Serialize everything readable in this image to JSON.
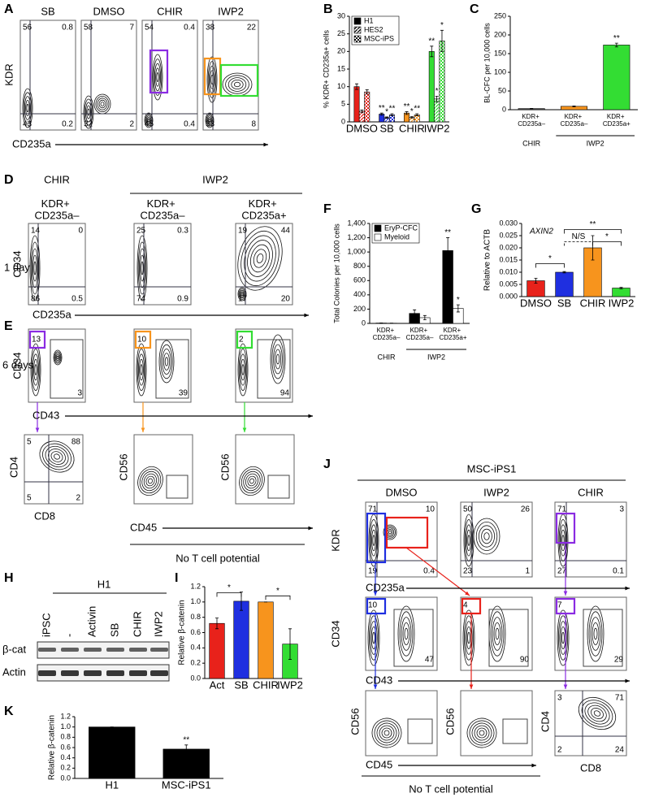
{
  "figure": {
    "panel_labels": [
      "A",
      "B",
      "C",
      "D",
      "E",
      "F",
      "G",
      "H",
      "I",
      "J",
      "K"
    ],
    "A": {
      "conditions": [
        "SB",
        "DMSO",
        "CHIR",
        "IWP2"
      ],
      "y_label": "KDR",
      "x_label": "CD235a",
      "quadrants": [
        [
          "56",
          "0.8",
          "43",
          "0.2"
        ],
        [
          "58",
          "7",
          "32",
          "2"
        ],
        [
          "54",
          "0.4",
          "45",
          "0.4"
        ],
        [
          "38",
          "22",
          "33",
          "8"
        ]
      ]
    },
    "D": {
      "groups": [
        "CHIR",
        "IWP2"
      ],
      "populations": [
        "KDR+ CD235a–",
        "KDR+ CD235a–",
        "KDR+ CD235a+"
      ],
      "time": "1 day",
      "y_label": "CD34",
      "x_label": "CD235a",
      "quadrants": [
        [
          "14",
          "0",
          "86",
          "0.5"
        ],
        [
          "25",
          "0.3",
          "74",
          "0.9"
        ],
        [
          "19",
          "44",
          "17",
          "20"
        ]
      ]
    },
    "E": {
      "time": "6 days",
      "y_label": "CD34",
      "x_label": "CD43",
      "gates": [
        [
          "13",
          "3"
        ],
        [
          "10",
          "39"
        ],
        [
          "2",
          "94"
        ]
      ],
      "t_cell": {
        "y_labels": [
          "CD4",
          "CD56",
          "CD56"
        ],
        "x_labels": [
          "CD8",
          "CD45"
        ],
        "quadrants": [
          "5",
          "88",
          "5",
          "2"
        ],
        "note": "No T cell potential"
      }
    },
    "H": {
      "group": "H1",
      "lanes": [
        "iPSC",
        "-",
        "Activin",
        "SB",
        "CHIR",
        "IWP2"
      ],
      "rows": [
        "β-cat",
        "Actin"
      ]
    },
    "J": {
      "title": "MSC-iPS1",
      "conditions": [
        "DMSO",
        "IWP2",
        "CHIR"
      ],
      "row1": {
        "y_label": "KDR",
        "x_label": "CD235a",
        "quadrants": [
          [
            "71",
            "10",
            "19",
            "0.4"
          ],
          [
            "50",
            "26",
            "23",
            "1"
          ],
          [
            "71",
            "3",
            "27",
            "0.1"
          ]
        ]
      },
      "row2": {
        "y_label": "CD34",
        "x_label": "CD43",
        "gates": [
          [
            "10",
            "47"
          ],
          [
            "4",
            "90"
          ],
          [
            "7",
            "29"
          ]
        ]
      },
      "row3": {
        "y_labels": [
          "CD56",
          "CD56",
          "CD4"
        ],
        "x_labels": [
          "CD45",
          "CD8"
        ],
        "quadrants": [
          "3",
          "71",
          "2",
          "24"
        ],
        "note": "No T cell potential"
      }
    }
  },
  "chart_data": [
    {
      "type": "bar",
      "y_label": "% KDR+ CD235a+ cells",
      "categories": [
        "DMSO",
        "SB",
        "CHIR",
        "IWP2"
      ],
      "category_colors": [
        "#e8221b",
        "#1f2fe0",
        "#f7941d",
        "#33dd33"
      ],
      "series": [
        {
          "name": "H1",
          "pattern": "solid",
          "color": "#000000",
          "values": [
            10,
            2.2,
            2.5,
            20
          ],
          "errors": [
            0.8,
            0.3,
            0.4,
            1.5
          ],
          "significance": [
            null,
            "**",
            "**",
            "**"
          ]
        },
        {
          "name": "HES2",
          "pattern": "hatch",
          "color": "#000000",
          "values": [
            3,
            1.2,
            1.3,
            6.5
          ],
          "errors": [
            0.4,
            0.2,
            0.2,
            0.8
          ],
          "significance": [
            null,
            "*",
            "*",
            "*"
          ]
        },
        {
          "name": "MSC-iPS",
          "pattern": "check",
          "color": "#000000",
          "values": [
            8.5,
            2,
            2,
            23
          ],
          "errors": [
            0.6,
            0.3,
            0.3,
            3
          ],
          "significance": [
            null,
            "**",
            "**",
            "*"
          ]
        }
      ],
      "ylim": [
        0,
        30
      ],
      "yticks": [
        0,
        5,
        10,
        15,
        20,
        25,
        30
      ],
      "legend": "upper left"
    },
    {
      "type": "bar",
      "y_label": "BL-CFC per 10,000 cells",
      "categories": [
        "KDR+ CD235a–",
        "KDR+ CD235a–",
        "KDR+ CD235a+"
      ],
      "groups": [
        {
          "name": "CHIR",
          "span": 1
        },
        {
          "name": "IWP2",
          "span": 2
        }
      ],
      "values": [
        3,
        9,
        173
      ],
      "errors": [
        0.5,
        1,
        5
      ],
      "significance": [
        null,
        null,
        "**"
      ],
      "colors": [
        "#555555",
        "#f7941d",
        "#33dd33"
      ],
      "ylim": [
        0,
        250
      ],
      "yticks": [
        0,
        50,
        100,
        150,
        200,
        250
      ]
    },
    {
      "type": "bar",
      "y_label": "Total Colonies per 10,000 cells",
      "categories": [
        "KDR+ CD235a–",
        "KDR+ CD235a–",
        "KDR+ CD235a+"
      ],
      "groups": [
        {
          "name": "CHIR",
          "span": 1
        },
        {
          "name": "IWP2",
          "span": 2
        }
      ],
      "series": [
        {
          "name": "EryP-CFC",
          "color": "#000000",
          "values": [
            5,
            140,
            1020
          ],
          "errors": [
            2,
            50,
            180
          ],
          "significance": [
            null,
            null,
            "**"
          ]
        },
        {
          "name": "Myeloid",
          "color": "#ffffff",
          "values": [
            3,
            80,
            210
          ],
          "errors": [
            1,
            30,
            50
          ],
          "significance": [
            null,
            null,
            "*"
          ]
        }
      ],
      "ylim": [
        0,
        1400
      ],
      "yticks": [
        0,
        200,
        400,
        600,
        800,
        {
          "value": 1000,
          "label": "1,000"
        },
        {
          "value": 1200,
          "label": "1,200"
        },
        {
          "value": 1400,
          "label": "1,400"
        }
      ],
      "legend": "upper left"
    },
    {
      "type": "bar",
      "title": "AXIN2",
      "y_label": "Relative to ACTB",
      "categories": [
        "DMSO",
        "SB",
        "CHIR",
        "IWP2"
      ],
      "values": [
        0.0065,
        0.01,
        0.02,
        0.0035
      ],
      "errors": [
        0.001,
        0.0003,
        0.005,
        0.0003
      ],
      "colors": [
        "#e8221b",
        "#1f2fe0",
        "#f7941d",
        "#33dd33"
      ],
      "annotations": [
        "*",
        "N/S",
        "*",
        "**"
      ],
      "ylim": [
        0,
        0.03
      ],
      "yticks": [
        {
          "value": 0,
          "label": "0.000"
        },
        0.005,
        {
          "value": 0.01,
          "label": "0.010"
        },
        0.015,
        {
          "value": 0.02,
          "label": "0.020"
        },
        0.025,
        {
          "value": 0.03,
          "label": "0.030"
        }
      ]
    },
    {
      "type": "bar",
      "y_label": "Relative β-catenin",
      "categories": [
        "Act",
        "SB",
        "CHIR",
        "IWP2"
      ],
      "values": [
        0.72,
        1.01,
        1.0,
        0.45
      ],
      "errors": [
        0.07,
        0.12,
        0,
        0.2
      ],
      "colors": [
        "#e8221b",
        "#1f2fe0",
        "#f7941d",
        "#33dd33"
      ],
      "annotations": [
        "*",
        "*"
      ],
      "ylim": [
        0,
        1.2
      ],
      "yticks": [
        {
          "value": 0,
          "label": "0.0"
        },
        0.2,
        0.4,
        0.6,
        0.8,
        {
          "value": 1,
          "label": "1.0"
        },
        1.2
      ]
    },
    {
      "type": "bar",
      "y_label": "Relative β-catenin",
      "categories": [
        "H1",
        "MSC-iPS1"
      ],
      "values": [
        1.0,
        0.57
      ],
      "errors": [
        0,
        0.08
      ],
      "significance": [
        null,
        "**"
      ],
      "colors": [
        "#000000",
        "#000000"
      ],
      "ylim": [
        0,
        1.2
      ],
      "yticks": [
        {
          "value": 0,
          "label": "0.0"
        },
        0.2,
        0.4,
        0.6,
        0.8,
        {
          "value": 1,
          "label": "1.0"
        },
        1.2
      ]
    }
  ]
}
